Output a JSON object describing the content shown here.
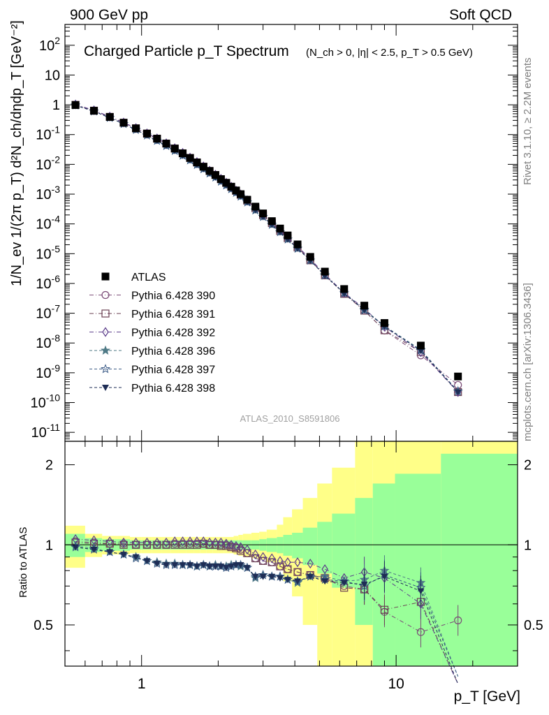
{
  "header": {
    "left": "900 GeV pp",
    "right": "Soft QCD"
  },
  "side_labels": {
    "top": "Rivet 3.1.10, ≥ 2.2M events",
    "bottom": "mcplots.cern.ch [arXiv:1306.3436]"
  },
  "watermark": "ATLAS_2010_S8591806",
  "chart_data": [
    {
      "type": "scatter",
      "title": "Charged Particle p_T Spectrum",
      "subtitle": "(N_ch > 0, |η| < 2.5, p_T > 0.5 GeV)",
      "ylabel": "1/N_ev 1/(2π p_T) d²N_ch/dηdp_T [GeV⁻²]",
      "xlabel": "p_T [GeV]",
      "xscale": "log",
      "yscale": "log",
      "xlim": [
        0.5,
        30
      ],
      "ylim": [
        5e-12,
        500
      ],
      "x_ticks": [
        "1",
        "10"
      ],
      "y_ticks": [
        "10^-11",
        "10^-10",
        "10^-9",
        "10^-8",
        "10^-7",
        "10^-6",
        "10^-5",
        "10^-4",
        "10^-3",
        "10^-2",
        "10^-1",
        "1",
        "10",
        "10^2"
      ],
      "legend_position": "left",
      "x": [
        0.55,
        0.65,
        0.75,
        0.85,
        0.95,
        1.05,
        1.15,
        1.25,
        1.35,
        1.45,
        1.55,
        1.65,
        1.75,
        1.85,
        1.95,
        2.05,
        2.15,
        2.25,
        2.35,
        2.45,
        2.6,
        2.8,
        3.0,
        3.25,
        3.5,
        3.75,
        4.1,
        4.6,
        5.25,
        6.25,
        7.5,
        9.0,
        12.5,
        17.5
      ],
      "series": [
        {
          "name": "ATLAS",
          "values": [
            0.98,
            0.63,
            0.39,
            0.25,
            0.162,
            0.108,
            0.073,
            0.05,
            0.034,
            0.0235,
            0.0164,
            0.0116,
            0.0083,
            0.006,
            0.0044,
            0.0032,
            0.0024,
            0.00178,
            0.00133,
            0.001,
            0.00065,
            0.00038,
            0.000225,
            0.000124,
            7e-05,
            4.1e-05,
            2.05e-05,
            7.8e-06,
            2.5e-06,
            6.5e-07,
            1.8e-07,
            4.7e-08,
            8.2e-09,
            7.5e-10
          ]
        },
        {
          "name": "Pythia 6.428 390",
          "ratio": [
            1.03,
            1.02,
            1.01,
            1.01,
            1.0,
            1.0,
            1.0,
            1.0,
            1.01,
            1.01,
            1.01,
            1.01,
            1.01,
            1.0,
            1.0,
            1.0,
            1.0,
            0.99,
            0.98,
            0.96,
            0.93,
            0.89,
            0.87,
            0.86,
            0.83,
            0.81,
            0.79,
            0.77,
            0.75,
            0.7,
            0.68,
            0.56,
            0.47,
            0.52
          ]
        },
        {
          "name": "Pythia 6.428 391",
          "ratio": [
            1.02,
            1.01,
            1.01,
            1.0,
            1.0,
            1.0,
            1.0,
            1.0,
            1.0,
            1.0,
            1.0,
            1.0,
            1.01,
            1.0,
            1.0,
            0.99,
            0.99,
            0.98,
            0.97,
            0.95,
            0.93,
            0.89,
            0.87,
            0.86,
            0.83,
            0.81,
            0.79,
            0.77,
            0.75,
            0.69,
            0.68,
            0.57,
            0.61,
            0.3
          ]
        },
        {
          "name": "Pythia 6.428 392",
          "ratio": [
            1.05,
            1.04,
            1.03,
            1.02,
            1.02,
            1.02,
            1.02,
            1.02,
            1.03,
            1.03,
            1.03,
            1.03,
            1.03,
            1.02,
            1.02,
            1.02,
            1.01,
            1.0,
            0.99,
            0.98,
            0.96,
            0.92,
            0.9,
            0.89,
            0.87,
            0.86,
            0.86,
            0.85,
            0.81,
            0.75,
            0.79,
            0.75,
            0.6,
            0.3
          ]
        },
        {
          "name": "Pythia 6.428 396",
          "ratio": [
            0.99,
            0.97,
            0.94,
            0.92,
            0.9,
            0.87,
            0.86,
            0.85,
            0.85,
            0.84,
            0.84,
            0.83,
            0.84,
            0.83,
            0.84,
            0.83,
            0.83,
            0.84,
            0.84,
            0.83,
            0.82,
            0.75,
            0.77,
            0.76,
            0.76,
            0.74,
            0.72,
            0.76,
            0.76,
            0.73,
            0.74,
            0.8,
            0.72,
            0.32
          ]
        },
        {
          "name": "Pythia 6.428 397",
          "ratio": [
            0.98,
            0.96,
            0.94,
            0.92,
            0.89,
            0.87,
            0.85,
            0.84,
            0.84,
            0.84,
            0.84,
            0.83,
            0.84,
            0.83,
            0.83,
            0.83,
            0.82,
            0.83,
            0.84,
            0.84,
            0.82,
            0.76,
            0.77,
            0.76,
            0.76,
            0.74,
            0.73,
            0.76,
            0.74,
            0.73,
            0.7,
            0.77,
            0.69,
            0.32
          ]
        },
        {
          "name": "Pythia 6.428 398",
          "ratio": [
            0.98,
            0.96,
            0.94,
            0.92,
            0.9,
            0.87,
            0.85,
            0.84,
            0.84,
            0.84,
            0.84,
            0.83,
            0.84,
            0.83,
            0.83,
            0.83,
            0.82,
            0.83,
            0.84,
            0.84,
            0.82,
            0.76,
            0.76,
            0.76,
            0.75,
            0.74,
            0.73,
            0.76,
            0.73,
            0.72,
            0.71,
            0.76,
            0.67,
            0.3
          ]
        }
      ]
    },
    {
      "type": "scatter",
      "ylabel": "Ratio to ATLAS",
      "xlabel": "p_T [GeV]",
      "xscale": "log",
      "yscale": "log",
      "xlim": [
        0.5,
        30
      ],
      "ylim": [
        0.35,
        2.45
      ],
      "y_ticks": [
        "0.5",
        "1",
        "2"
      ],
      "reference_line": 1,
      "bands": {
        "x_edges": [
          0.5,
          0.6,
          0.7,
          0.8,
          0.9,
          1.0,
          1.1,
          1.2,
          1.3,
          1.4,
          1.5,
          1.6,
          1.7,
          1.8,
          1.9,
          2.0,
          2.1,
          2.2,
          2.3,
          2.4,
          2.5,
          2.7,
          2.9,
          3.1,
          3.4,
          3.6,
          3.9,
          4.3,
          4.9,
          5.6,
          6.9,
          8.1,
          9.9,
          15.0,
          30.0
        ],
        "green_hi": [
          1.1,
          1.06,
          1.05,
          1.05,
          1.04,
          1.04,
          1.04,
          1.04,
          1.04,
          1.04,
          1.04,
          1.04,
          1.04,
          1.04,
          1.04,
          1.04,
          1.04,
          1.04,
          1.04,
          1.04,
          1.04,
          1.04,
          1.05,
          1.06,
          1.07,
          1.09,
          1.11,
          1.16,
          1.22,
          1.31,
          1.5,
          1.7,
          1.85,
          2.2
        ],
        "green_lo": [
          0.9,
          0.94,
          0.95,
          0.95,
          0.96,
          0.96,
          0.96,
          0.96,
          0.96,
          0.96,
          0.96,
          0.96,
          0.96,
          0.96,
          0.96,
          0.96,
          0.96,
          0.96,
          0.96,
          0.96,
          0.96,
          0.96,
          0.95,
          0.94,
          0.93,
          0.91,
          0.89,
          0.84,
          0.78,
          0.69,
          0.5,
          0.3,
          0.15,
          0.15
        ],
        "yellow_hi": [
          1.18,
          1.1,
          1.08,
          1.08,
          1.07,
          1.07,
          1.07,
          1.07,
          1.07,
          1.07,
          1.07,
          1.07,
          1.07,
          1.07,
          1.07,
          1.07,
          1.07,
          1.07,
          1.08,
          1.09,
          1.1,
          1.11,
          1.12,
          1.14,
          1.19,
          1.27,
          1.36,
          1.5,
          1.7,
          1.95,
          2.45,
          2.45,
          2.45,
          2.45
        ],
        "yellow_lo": [
          0.82,
          0.9,
          0.92,
          0.92,
          0.93,
          0.93,
          0.93,
          0.93,
          0.93,
          0.93,
          0.93,
          0.93,
          0.93,
          0.93,
          0.93,
          0.93,
          0.93,
          0.93,
          0.92,
          0.91,
          0.9,
          0.89,
          0.88,
          0.86,
          0.81,
          0.73,
          0.64,
          0.5,
          0.3,
          0.05,
          0.05,
          0.05,
          0.05,
          0.05
        ]
      }
    }
  ],
  "colors": {
    "atlas": "#000000",
    "s390": "#7a4a76",
    "s391": "#6a3f52",
    "s392": "#5b3c8a",
    "s396": "#4f7a86",
    "s397": "#3a5a86",
    "s398": "#1e2d55",
    "band_green": "#99ff99",
    "band_yellow": "#ffff88"
  }
}
